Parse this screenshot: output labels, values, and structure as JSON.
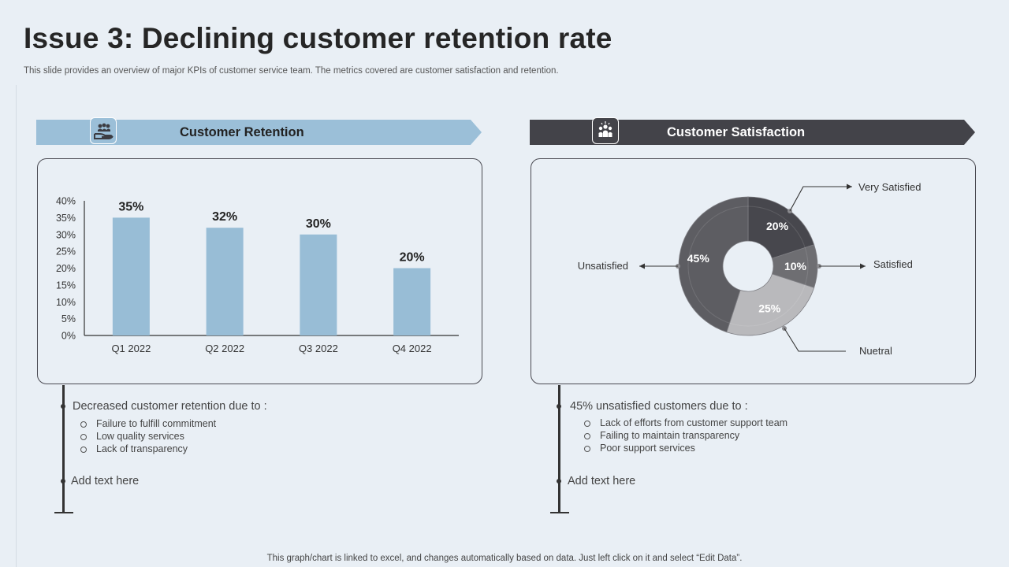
{
  "slide": {
    "title": "Issue 3: Declining customer retention rate",
    "subtitle": "This slide provides an overview of major KPIs of customer service team. The metrics covered are customer satisfaction and retention.",
    "footer": "This graph/chart is linked to excel,  and changes automatically based on data. Just left click on it and select “Edit Data”."
  },
  "colors": {
    "retention_banner": "#9bbfd8",
    "satisfaction_banner": "#434349",
    "bar": "#98bdd6",
    "donut_very_satisfied": "#47474d",
    "donut_satisfied": "#6e6e72",
    "donut_neutral": "#b9b9bc",
    "donut_unsatisfied": "#5d5d62"
  },
  "retention": {
    "banner_label": "Customer Retention",
    "banner_icon": "hand-people-icon",
    "note_heading": "Decreased customer retention due to :",
    "note_items": [
      "Failure to fulfill commitment",
      "Low quality services",
      "Lack of transparency"
    ],
    "add_text": "Add text here"
  },
  "satisfaction": {
    "banner_label": "Customer Satisfaction",
    "banner_icon": "team-icon",
    "note_heading": "45% unsatisfied customers due to :",
    "note_items": [
      "Lack of efforts  from customer support team",
      "Failing to maintain transparency",
      "Poor support services"
    ],
    "add_text": "Add text here"
  },
  "chart_data": [
    {
      "type": "bar",
      "categories": [
        "Q1 2022",
        "Q2 2022",
        "Q3 2022",
        "Q4 2022"
      ],
      "values": [
        35,
        32,
        30,
        20
      ],
      "data_labels": [
        "35%",
        "32%",
        "30%",
        "20%"
      ],
      "yticks": [
        "0%",
        "5%",
        "10%",
        "15%",
        "20%",
        "25%",
        "30%",
        "35%",
        "40%"
      ],
      "ylim": [
        0,
        40
      ],
      "grid": false
    },
    {
      "type": "pie",
      "variant": "donut",
      "slices": [
        {
          "name": "Very Satisfied",
          "value": 20,
          "label": "20%"
        },
        {
          "name": "Satisfied",
          "value": 10,
          "label": "10%"
        },
        {
          "name": "Nuetral",
          "value": 25,
          "label": "25%"
        },
        {
          "name": "Unsatisfied",
          "value": 45,
          "label": "45%"
        }
      ]
    }
  ]
}
